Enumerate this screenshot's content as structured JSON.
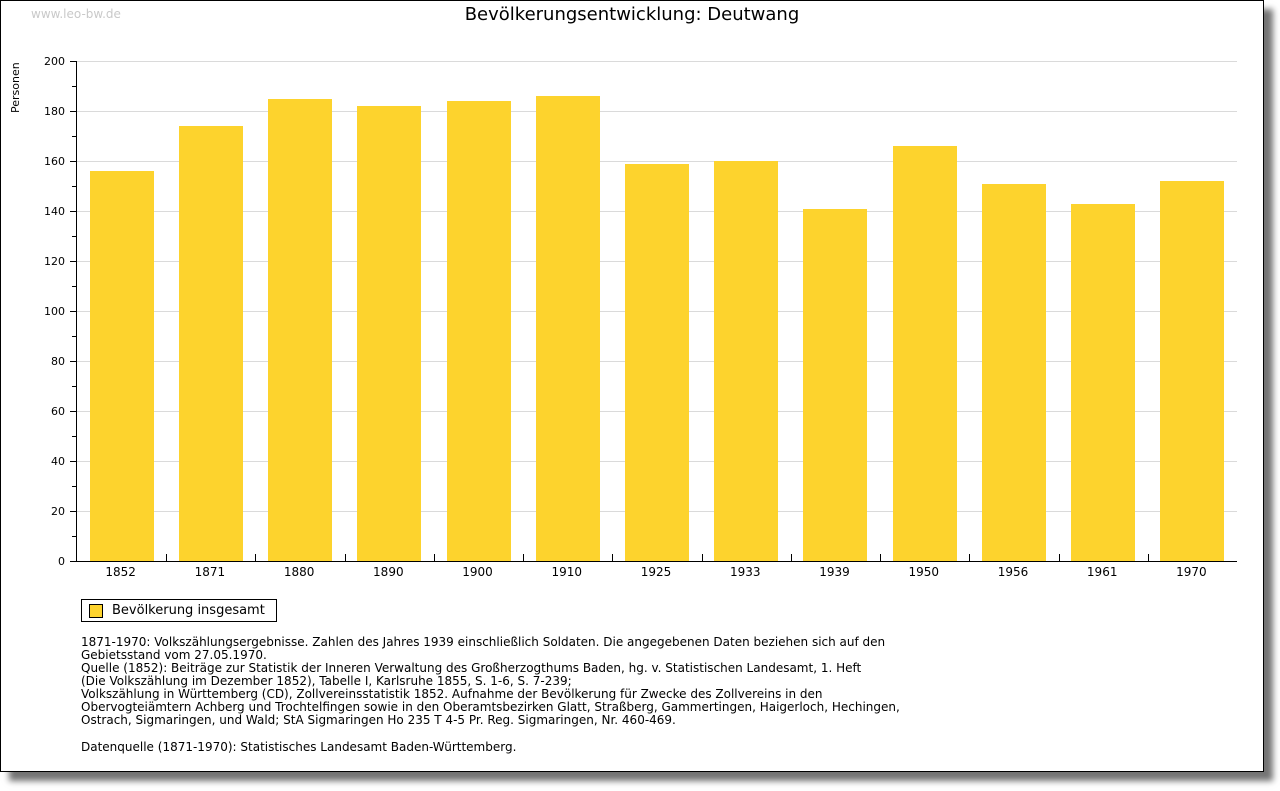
{
  "watermark": "www.leo-bw.de",
  "chart_data": {
    "type": "bar",
    "title": "Bevölkerungsentwicklung: Deutwang",
    "ylabel": "Personen",
    "xlabel": "",
    "categories": [
      "1852",
      "1871",
      "1880",
      "1890",
      "1900",
      "1910",
      "1925",
      "1933",
      "1939",
      "1950",
      "1956",
      "1961",
      "1970"
    ],
    "values": [
      156,
      174,
      185,
      182,
      184,
      186,
      159,
      160,
      141,
      166,
      151,
      143,
      152
    ],
    "ylim": [
      0,
      200
    ],
    "ytick_step": 20,
    "yminor_step": 10,
    "grid": true,
    "bar_color": "#fdd32d",
    "legend": [
      "Bevölkerung insgesamt"
    ],
    "legend_position": "bottom-left"
  },
  "footnotes": {
    "lines": [
      "1871-1970: Volkszählungsergebnisse. Zahlen des Jahres 1939 einschließlich Soldaten. Die angegebenen Daten beziehen sich auf den",
      "Gebietsstand vom 27.05.1970.",
      "Quelle (1852): Beiträge zur Statistik der Inneren Verwaltung des Großherzogthums Baden, hg. v. Statistischen Landesamt, 1. Heft",
      "(Die Volkszählung im Dezember 1852), Tabelle I, Karlsruhe 1855, S. 1-6, S. 7-239;",
      "Volkszählung in Württemberg (CD), Zollvereinsstatistik 1852. Aufnahme der Bevölkerung für Zwecke des Zollvereins in den",
      "Obervogteiämtern Achberg und Trochtelfingen sowie in den Oberamtsbezirken Glatt, Straßberg, Gammertingen, Haigerloch, Hechingen,",
      "Ostrach, Sigmaringen, und Wald; StA Sigmaringen Ho 235 T 4-5 Pr. Reg. Sigmaringen, Nr. 460-469."
    ],
    "source": "Datenquelle (1871-1970): Statistisches Landesamt Baden-Württemberg."
  }
}
